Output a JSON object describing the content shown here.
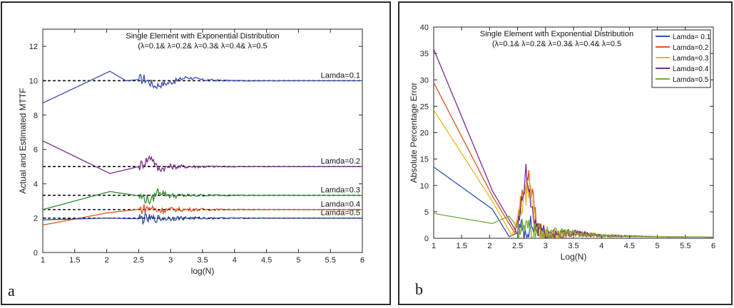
{
  "chart_data": [
    {
      "panel_label": "a",
      "type": "line",
      "title": "Single Element with Exponential Distribution",
      "subtitle": "(λ=0.1& λ=0.2& λ=0.3& λ=0.4& λ=0.5",
      "xlabel": "log(N)",
      "ylabel": "Actual and Estimated MTTF",
      "xlim": [
        1,
        6
      ],
      "ylim": [
        0,
        13
      ],
      "xticks": [
        "1",
        "1.5",
        "2",
        "2.5",
        "3",
        "3.5",
        "4",
        "4.5",
        "5",
        "5.5",
        "6"
      ],
      "yticks": [
        "0",
        "2",
        "4",
        "6",
        "8",
        "10",
        "12"
      ],
      "grid": false,
      "reference_lines": [
        {
          "label": "Lamda=0.1",
          "y": 10
        },
        {
          "label": "Lamda=0.2",
          "y": 5
        },
        {
          "label": "Lamda=0.3",
          "y": 3.33
        },
        {
          "label": "Lamda=0.4",
          "y": 2.5
        },
        {
          "label": "Lamda=0.5",
          "y": 2
        }
      ],
      "series": [
        {
          "color": "#3a4fb0",
          "x": [
            1,
            2.05,
            2.3,
            2.6,
            2.75,
            3.0,
            3.25,
            3.5,
            4.0,
            4.5,
            5.0,
            6.0
          ],
          "y": [
            8.7,
            10.55,
            10.0,
            10.1,
            9.7,
            9.9,
            10.2,
            10.05,
            10.0,
            10.0,
            10.0,
            10.0
          ]
        },
        {
          "color": "#7b2a8c",
          "x": [
            1,
            2.05,
            2.5,
            2.7,
            2.8,
            3.0,
            3.5,
            4.0,
            4.5,
            5.0,
            6.0
          ],
          "y": [
            6.5,
            4.6,
            5.0,
            5.6,
            4.85,
            5.0,
            5.0,
            5.0,
            5.0,
            5.0,
            5.0
          ]
        },
        {
          "color": "#2e8b2e",
          "x": [
            1,
            2.05,
            2.5,
            2.7,
            2.8,
            3.0,
            3.5,
            4.0,
            4.5,
            5.0,
            6.0
          ],
          "y": [
            2.5,
            3.55,
            3.3,
            3.0,
            3.6,
            3.3,
            3.33,
            3.33,
            3.33,
            3.33,
            3.33
          ]
        },
        {
          "color": "#d9541a",
          "x": [
            1,
            2.0,
            2.7,
            2.8,
            3.0,
            3.5,
            4.0,
            5.0,
            6.0
          ],
          "y": [
            1.6,
            2.3,
            2.6,
            2.45,
            2.5,
            2.5,
            2.5,
            2.5,
            2.5
          ]
        },
        {
          "color": "#2b4aa3",
          "x": [
            1,
            2.0,
            2.7,
            3.0,
            3.5,
            4.0,
            5.0,
            6.0
          ],
          "y": [
            1.9,
            2.0,
            1.95,
            2.0,
            2.0,
            2.0,
            2.0,
            2.0
          ]
        }
      ]
    },
    {
      "panel_label": "b",
      "type": "line",
      "title": "Single Element with Exponential Distribution",
      "subtitle": "(λ=0.1& λ=0.2& λ=0.3& λ=0.4& λ=0.5",
      "xlabel": "Log(N)",
      "ylabel": "Absolute Percentage Error",
      "xlim": [
        1,
        6
      ],
      "ylim": [
        0,
        40
      ],
      "xticks": [
        "1",
        "1.5",
        "2",
        "2.5",
        "3",
        "3.5",
        "4",
        "4.5",
        "5",
        "5.5",
        "6"
      ],
      "yticks": [
        "0",
        "5",
        "10",
        "15",
        "20",
        "25",
        "30",
        "35",
        "40"
      ],
      "grid": false,
      "legend": "top-right",
      "series": [
        {
          "name": "Lamda= 0.1",
          "color": "#2f4fb5",
          "x": [
            1,
            2.05,
            2.35,
            2.6,
            2.75,
            3.0,
            3.5,
            4.0,
            5.0,
            6.0
          ],
          "y": [
            13.5,
            5.5,
            0.3,
            1.5,
            2.5,
            0.5,
            1.0,
            0.5,
            0.3,
            0.2
          ]
        },
        {
          "name": "Lamda=0.2",
          "color": "#d9541a",
          "x": [
            1,
            2.05,
            2.45,
            2.7,
            2.85,
            3.0,
            3.5,
            4.0,
            5.0,
            6.0
          ],
          "y": [
            29.5,
            8.0,
            1.0,
            12.8,
            2.0,
            0.5,
            1.0,
            0.5,
            0.3,
            0.2
          ]
        },
        {
          "name": "Lamda=0.3",
          "color": "#e8b620",
          "x": [
            1,
            2.05,
            2.4,
            2.55,
            2.7,
            2.85,
            3.0,
            3.5,
            4.0,
            5.0,
            6.0
          ],
          "y": [
            24.3,
            7.0,
            0.5,
            5.5,
            9.8,
            1.5,
            0.5,
            1.0,
            0.5,
            0.3,
            0.2
          ]
        },
        {
          "name": "Lamda=0.4",
          "color": "#7b2a8c",
          "x": [
            1,
            2.05,
            2.5,
            2.65,
            2.8,
            3.0,
            3.5,
            4.0,
            5.0,
            6.0
          ],
          "y": [
            35.8,
            9.0,
            0.8,
            12.0,
            3.0,
            0.8,
            1.0,
            0.5,
            0.3,
            0.2
          ]
        },
        {
          "name": "Lamda=0.5",
          "color": "#77ac30",
          "x": [
            1,
            2.05,
            2.35,
            2.5,
            2.7,
            3.0,
            3.5,
            4.0,
            5.0,
            6.0
          ],
          "y": [
            4.7,
            2.8,
            4.2,
            2.0,
            1.5,
            1.0,
            1.0,
            0.5,
            0.3,
            0.2
          ]
        }
      ]
    }
  ]
}
